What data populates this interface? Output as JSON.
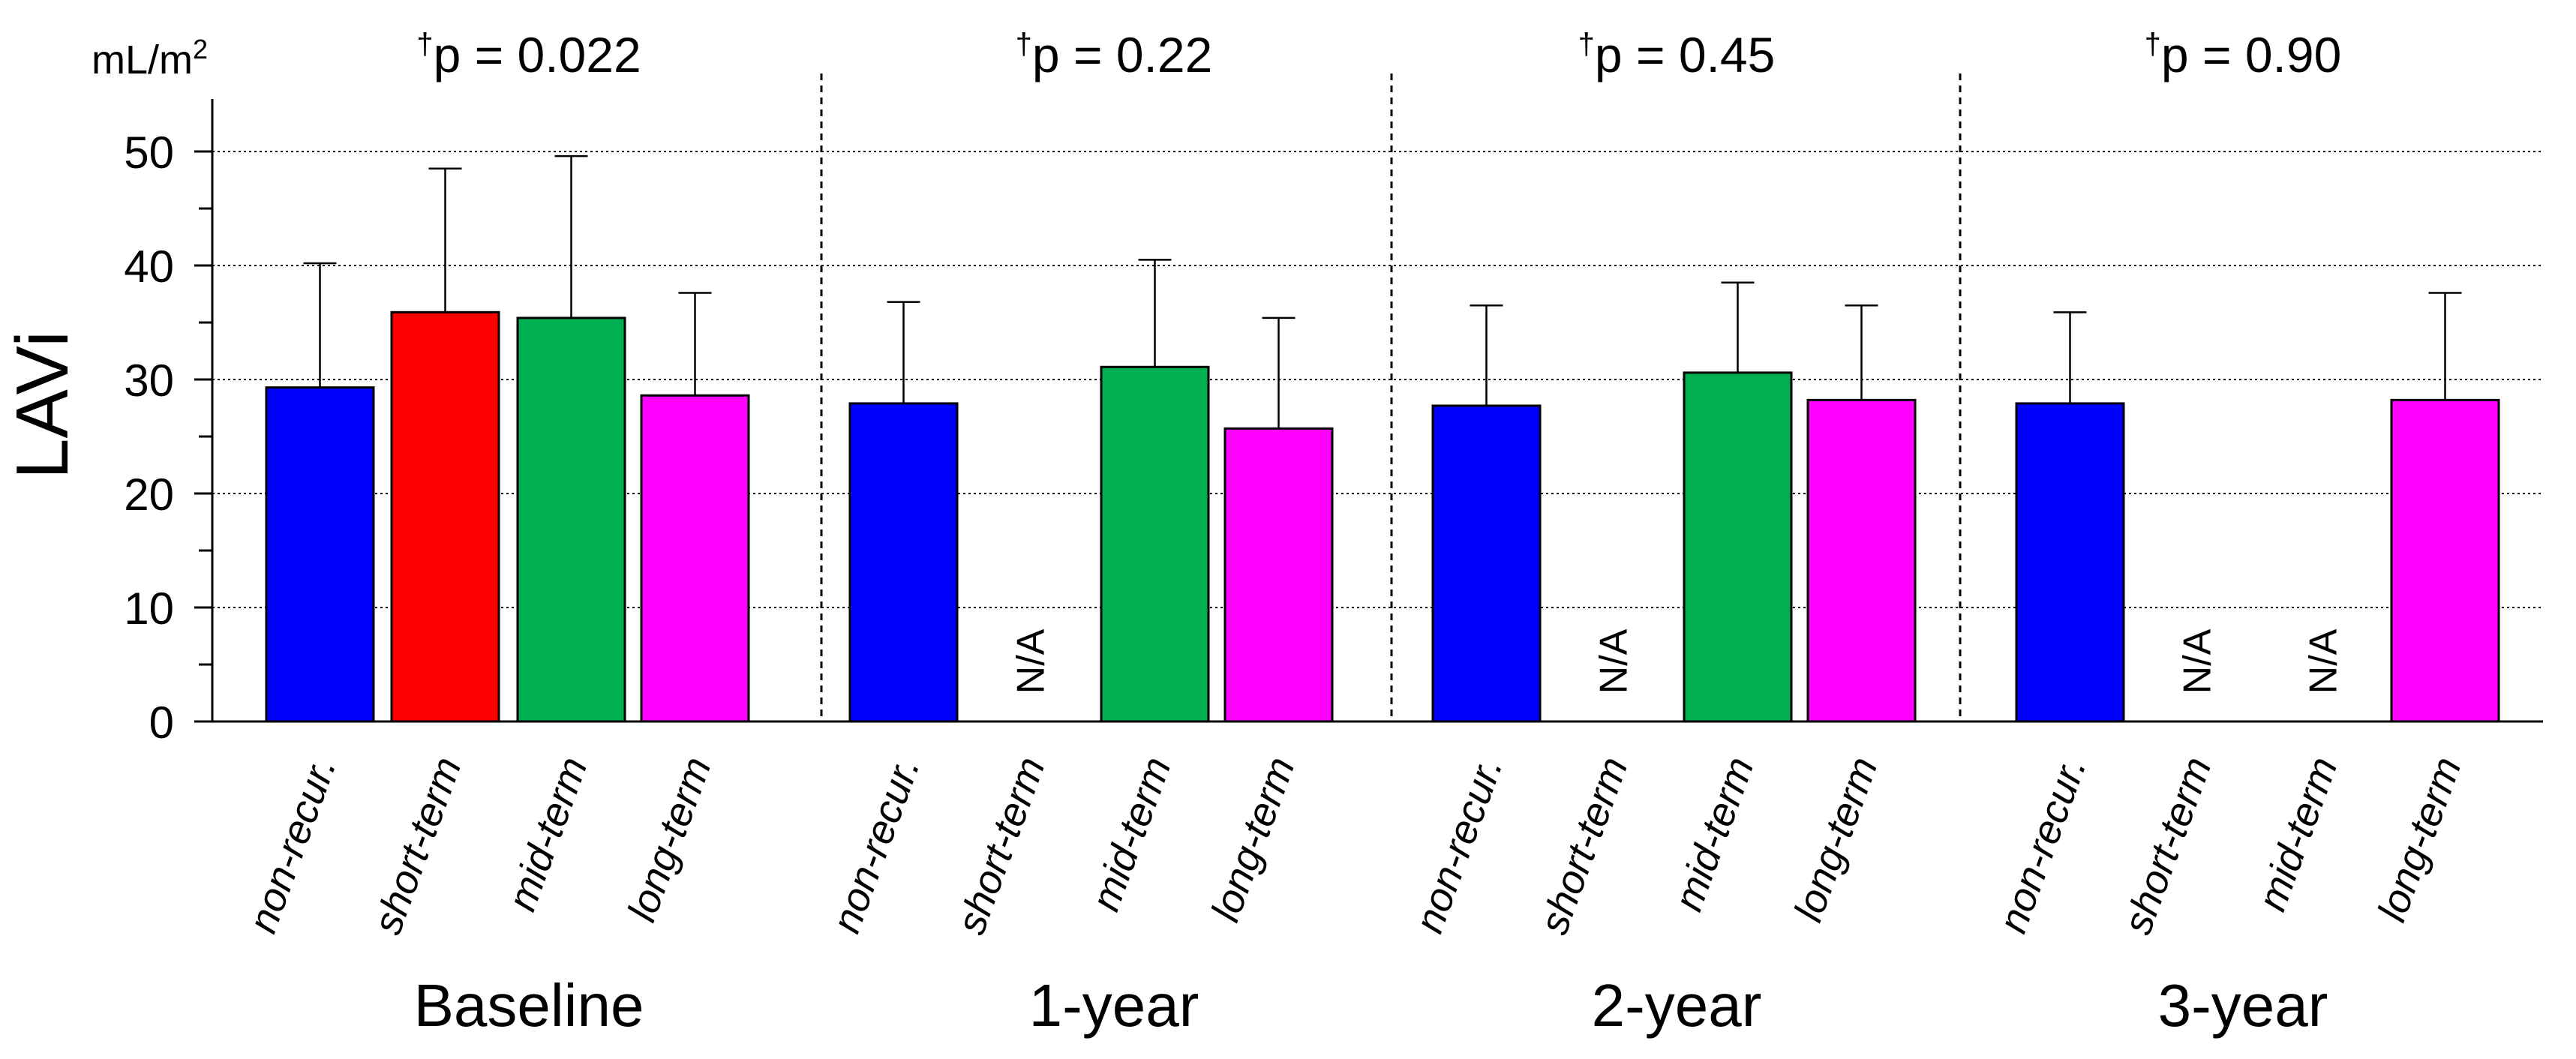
{
  "chart_data": {
    "type": "bar",
    "ylabel": "LAVi",
    "yunit": "mL/m",
    "yunit_sup": "2",
    "ylim": [
      0,
      55
    ],
    "yticks": [
      "0",
      "10",
      "20",
      "30",
      "40",
      "50"
    ],
    "grid": true,
    "na_label": "N/A",
    "categories": [
      "non-recur.",
      "short-term",
      "mid-term",
      "long-term"
    ],
    "colors": [
      "#0000ff",
      "#ff0000",
      "#00b050",
      "#ff00ff"
    ],
    "panels": [
      {
        "name": "Baseline",
        "dagger": "†",
        "pvalue": "p = 0.022",
        "values": [
          29.3,
          35.9,
          35.4,
          28.6
        ],
        "errors": [
          40.2,
          48.5,
          49.6,
          37.6
        ]
      },
      {
        "name": "1-year",
        "dagger": "†",
        "pvalue": "p = 0.22",
        "values": [
          27.9,
          null,
          31.1,
          25.7
        ],
        "errors": [
          36.8,
          null,
          40.5,
          35.4
        ]
      },
      {
        "name": "2-year",
        "dagger": "†",
        "pvalue": "p = 0.45",
        "values": [
          27.7,
          null,
          30.6,
          28.2
        ],
        "errors": [
          36.5,
          null,
          38.5,
          36.5
        ]
      },
      {
        "name": "3-year",
        "dagger": "†",
        "pvalue": "p = 0.90",
        "values": [
          27.9,
          null,
          null,
          28.2
        ],
        "errors": [
          35.9,
          null,
          null,
          37.6
        ]
      }
    ]
  }
}
